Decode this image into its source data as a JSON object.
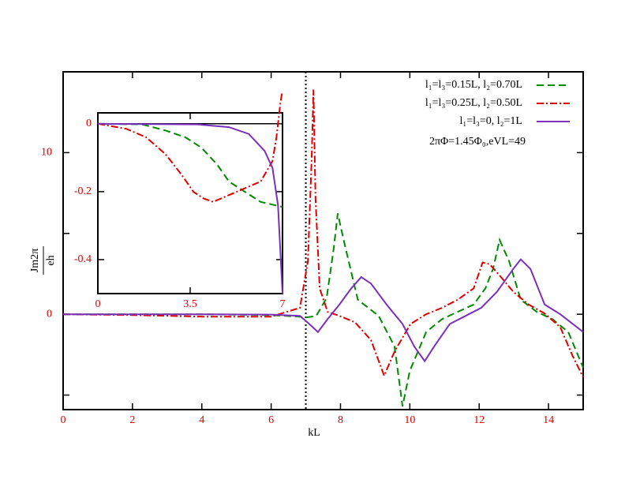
{
  "chart_data": [
    {
      "type": "line",
      "xlabel": "kL",
      "ylabel_numerator": "Jm2π",
      "ylabel_denominator": "eh",
      "xlim": [
        0,
        15
      ],
      "ylim": [
        -5.9,
        15
      ],
      "xticks": [
        0,
        2,
        4,
        6,
        8,
        10,
        12,
        14
      ],
      "yticks": [
        0,
        10
      ],
      "yminor_ticks": [
        -5,
        5
      ],
      "vline": 7,
      "vline_style": "dotted",
      "tick_label_color": "#e00000",
      "legend": "upper right",
      "annotation": "2πΦ=1.45Φ₀,eVL=49",
      "series": [
        {
          "name": "l₁=l₃=0.15L, l₂=0.70L",
          "color": "#008a00",
          "style": "dashed",
          "x": [
            0,
            2,
            4,
            6,
            6.8,
            7.0,
            7.3,
            7.6,
            7.8,
            7.92,
            8.1,
            8.5,
            9.1,
            9.56,
            9.79,
            10.0,
            10.47,
            10.93,
            11.38,
            11.84,
            12.18,
            12.4,
            12.59,
            12.86,
            13.2,
            13.66,
            14.11,
            14.57,
            15
          ],
          "values": [
            0,
            0,
            0,
            -0.05,
            -0.15,
            -0.2,
            -0.1,
            1.0,
            4.0,
            6.24,
            4.5,
            0.9,
            -0.1,
            -2.0,
            -5.7,
            -3.5,
            -1.1,
            -0.3,
            0.15,
            0.6,
            1.6,
            2.8,
            4.6,
            3.3,
            0.9,
            0.15,
            -0.3,
            -1.1,
            -3.3
          ]
        },
        {
          "name": "l₁=l₃=0.25L, l₂=0.50L",
          "color": "#e00000",
          "style": "dashdot",
          "x": [
            0,
            2,
            4,
            6,
            6.83,
            7.06,
            7.17,
            7.22,
            7.28,
            7.4,
            7.63,
            7.97,
            8.42,
            8.88,
            9.26,
            9.56,
            10.02,
            10.47,
            10.93,
            11.38,
            11.84,
            12.1,
            12.3,
            12.63,
            12.98,
            13.43,
            13.89,
            14.34,
            14.68,
            15
          ],
          "values": [
            0,
            -0.05,
            -0.15,
            -0.15,
            0.4,
            3.3,
            9.7,
            13.9,
            7.2,
            1.6,
            0.15,
            -0.1,
            -0.5,
            -1.6,
            -3.8,
            -2.3,
            -0.6,
            0,
            0.4,
            0.9,
            1.6,
            3.2,
            3.1,
            2.3,
            1.4,
            0.6,
            0.05,
            -0.8,
            -2.5,
            -3.9
          ]
        },
        {
          "name": "l₁=l₃=0, l₂=1L",
          "color": "#7b2fbf",
          "style": "solid",
          "x": [
            0,
            2,
            4,
            6,
            6.83,
            7.1,
            7.35,
            7.63,
            7.97,
            8.31,
            8.6,
            8.88,
            9.33,
            9.79,
            10.13,
            10.43,
            10.7,
            11.15,
            11.61,
            12.06,
            12.52,
            12.98,
            13.2,
            13.48,
            13.89,
            14.34,
            15
          ],
          "values": [
            0,
            0,
            0,
            -0.02,
            -0.1,
            -0.6,
            -1.1,
            -0.3,
            0.6,
            1.6,
            2.3,
            1.9,
            0.6,
            -0.6,
            -2.0,
            -2.9,
            -2.0,
            -0.6,
            -0.1,
            0.4,
            1.4,
            2.8,
            3.4,
            2.8,
            0.6,
            0,
            -1.1
          ]
        }
      ]
    },
    {
      "type": "line",
      "xlim": [
        0,
        7
      ],
      "ylim": [
        -0.5,
        0.032
      ],
      "xticks": [
        0,
        3.5,
        7
      ],
      "yticks": [
        0,
        -0.2,
        -0.4
      ],
      "zero_line": true,
      "tick_label_color": "#e00000",
      "series": [
        {
          "color": "#008a00",
          "style": "dashed",
          "x": [
            0,
            1.68,
            2.57,
            3.32,
            3.92,
            4.52,
            4.97,
            5.57,
            6.17,
            7
          ],
          "values": [
            0,
            -0.002,
            -0.02,
            -0.04,
            -0.07,
            -0.12,
            -0.17,
            -0.2,
            -0.23,
            -0.245
          ]
        },
        {
          "color": "#e00000",
          "style": "dashdot",
          "x": [
            0,
            1.08,
            1.83,
            2.57,
            3.17,
            3.62,
            4.01,
            4.37,
            4.97,
            5.57,
            6.17,
            6.62,
            6.77,
            6.92,
            6.98
          ],
          "values": [
            0,
            -0.015,
            -0.04,
            -0.09,
            -0.15,
            -0.2,
            -0.22,
            -0.23,
            -0.21,
            -0.19,
            -0.17,
            -0.11,
            -0.04,
            0.06,
            0.09
          ]
        },
        {
          "color": "#7b2fbf",
          "style": "solid",
          "x": [
            0,
            3.77,
            4.97,
            5.72,
            6.32,
            6.62,
            6.83,
            7
          ],
          "values": [
            0,
            -0.002,
            -0.01,
            -0.03,
            -0.08,
            -0.13,
            -0.24,
            -0.5
          ]
        }
      ]
    }
  ]
}
